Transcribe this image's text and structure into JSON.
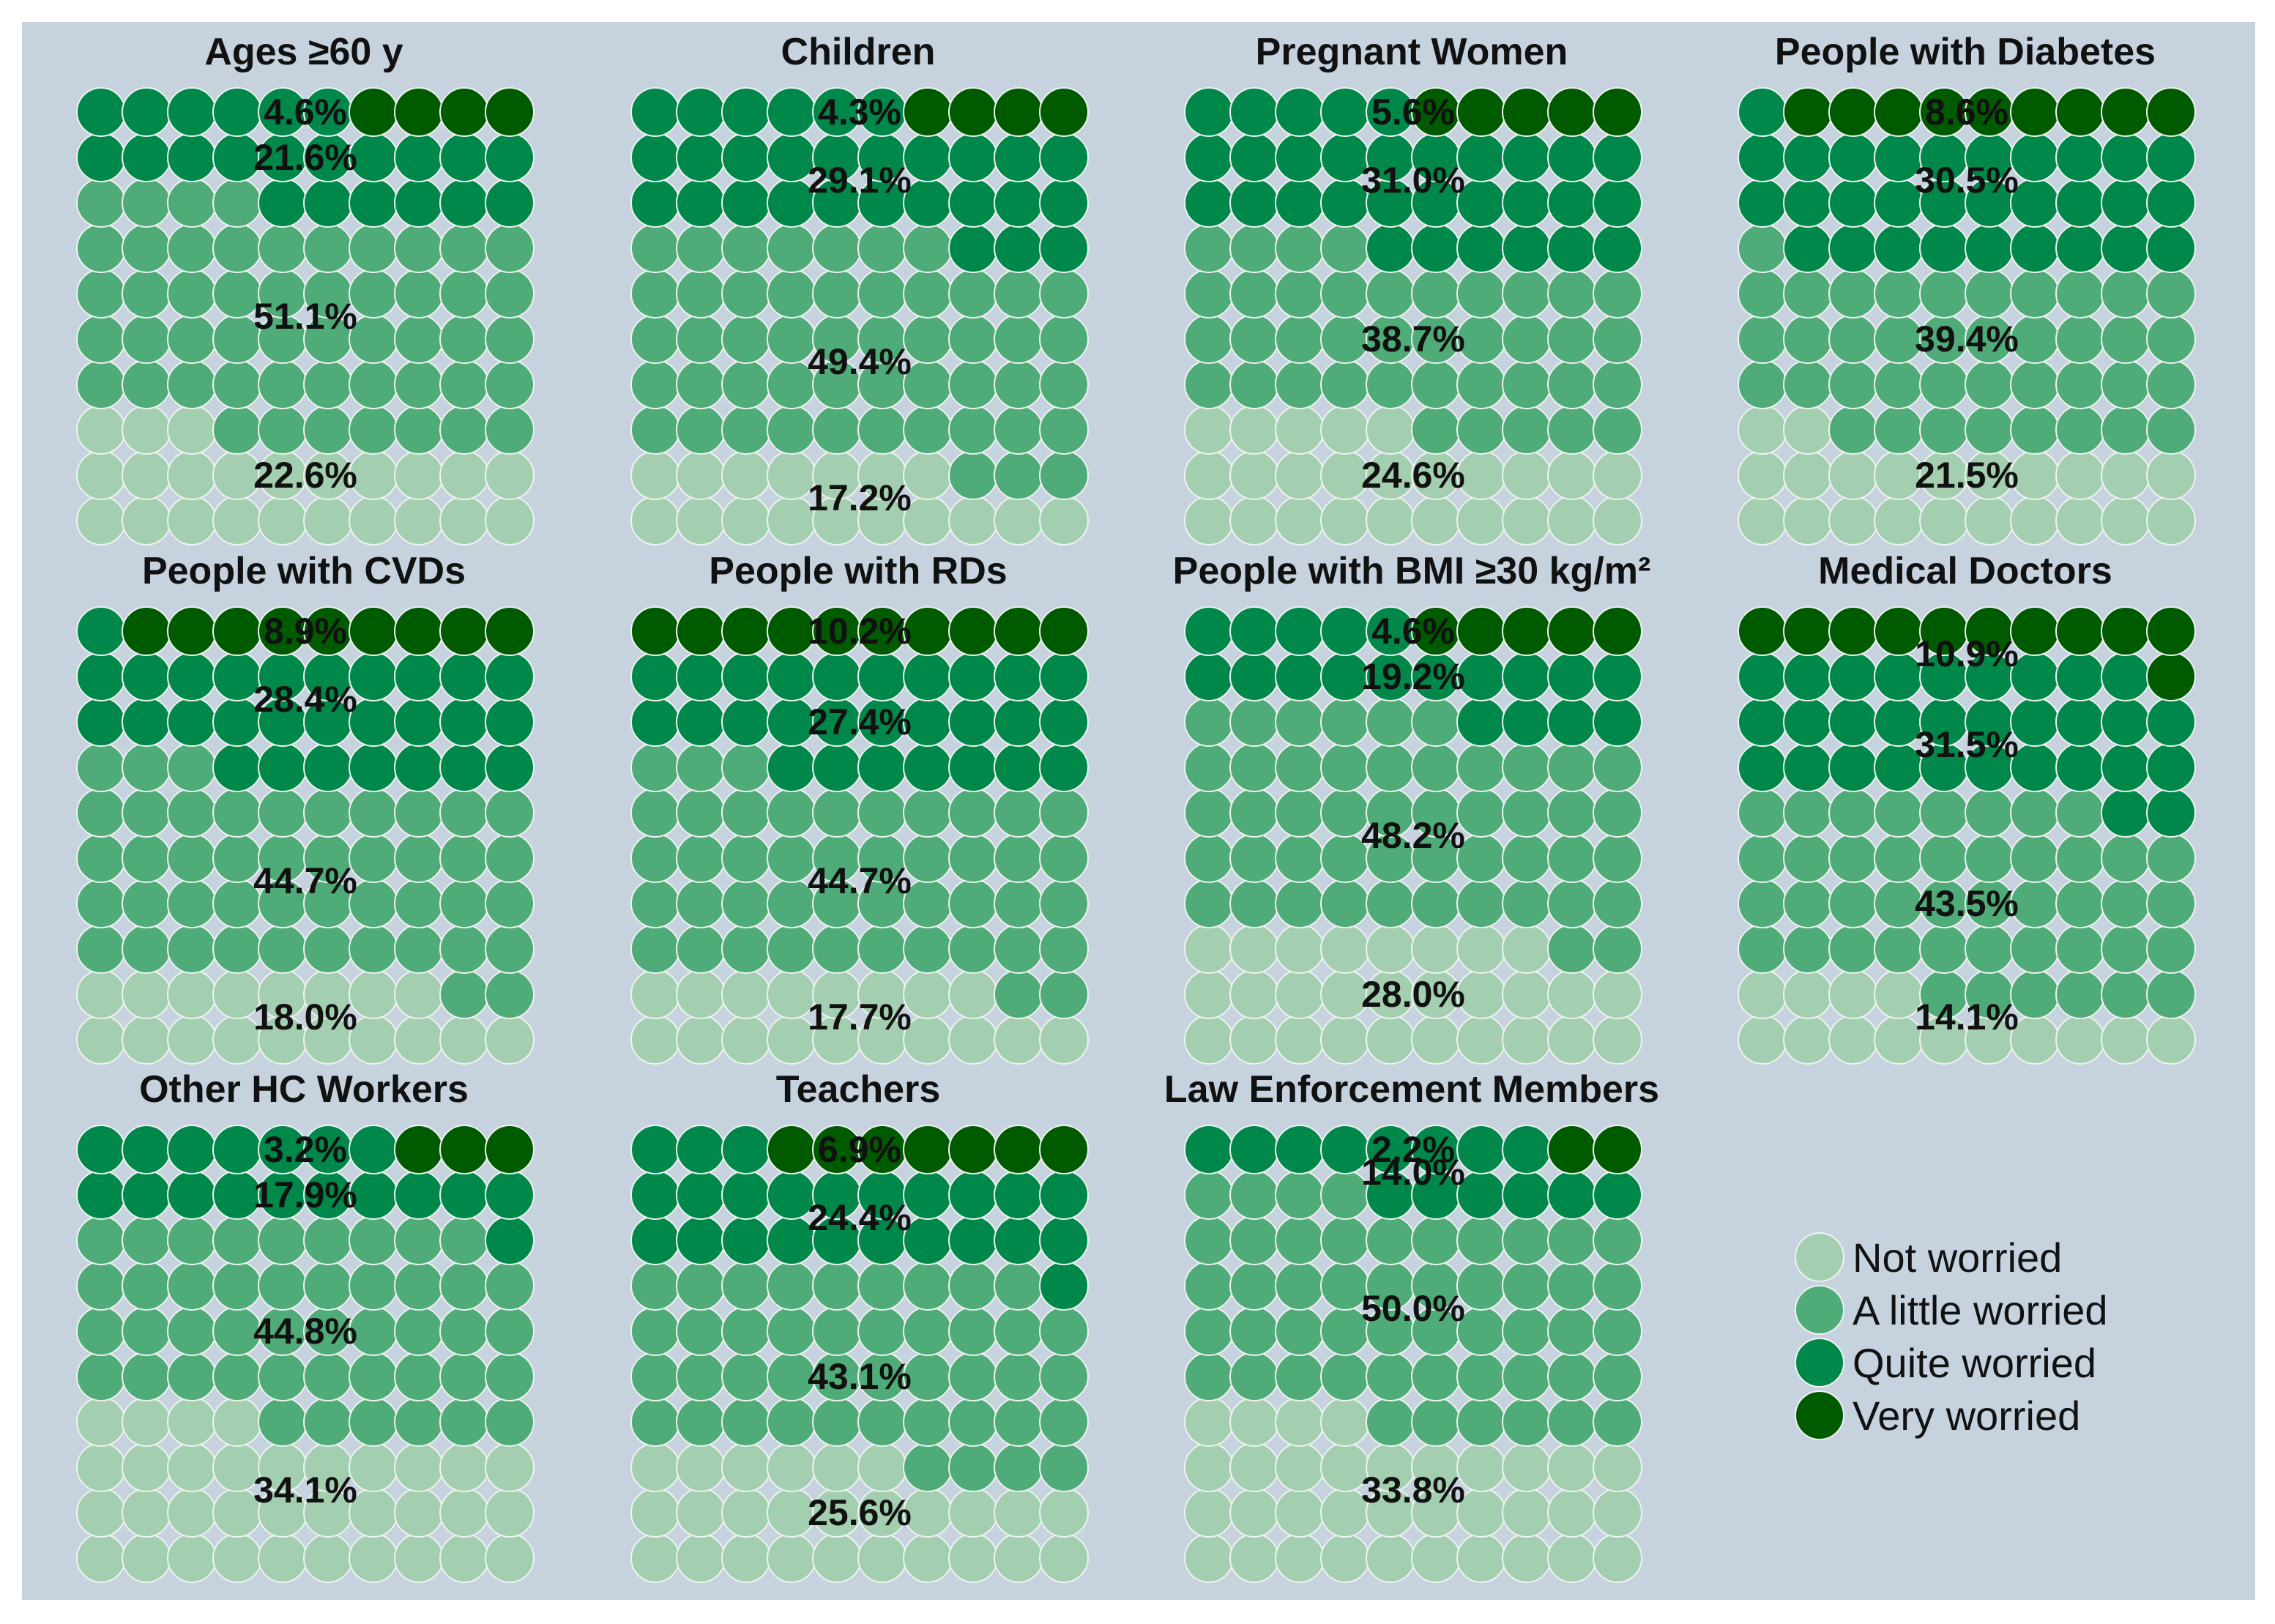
{
  "chart_data": {
    "type": "waffle",
    "grid": {
      "rows": 10,
      "cols": 10
    },
    "categories": [
      "Not worried",
      "A little worried",
      "Quite worried",
      "Very worried"
    ],
    "colors": {
      "background": "#c6d3df",
      "cell_stroke": "#eef3f0",
      "Not worried": "#a3cfb0",
      "A little worried": "#4fab78",
      "Quite worried": "#00884a",
      "Very worried": "#005a00"
    },
    "legend": {
      "position": "bottom-right",
      "items": [
        "Not worried",
        "A little worried",
        "Quite worried",
        "Very worried"
      ]
    },
    "panels": [
      {
        "title": "Ages ≥60 y",
        "values": {
          "Not worried": 22.6,
          "A little worried": 51.1,
          "Quite worried": 21.6,
          "Very worried": 4.6
        },
        "labels": {
          "Not worried": "22.6%",
          "A little worried": "51.1%",
          "Quite worried": "21.6%",
          "Very worried": "4.6%"
        }
      },
      {
        "title": "Children",
        "values": {
          "Not worried": 17.2,
          "A little worried": 49.4,
          "Quite worried": 29.1,
          "Very worried": 4.3
        },
        "labels": {
          "Not worried": "17.2%",
          "A little worried": "49.4%",
          "Quite worried": "29.1%",
          "Very worried": "4.3%"
        }
      },
      {
        "title": "Pregnant Women",
        "values": {
          "Not worried": 24.6,
          "A little worried": 38.7,
          "Quite worried": 31.0,
          "Very worried": 5.6
        },
        "labels": {
          "Not worried": "24.6%",
          "A little worried": "38.7%",
          "Quite worried": "31.0%",
          "Very worried": "5.6%"
        }
      },
      {
        "title": "People with Diabetes",
        "values": {
          "Not worried": 21.5,
          "A little worried": 39.4,
          "Quite worried": 30.5,
          "Very worried": 8.6
        },
        "labels": {
          "Not worried": "21.5%",
          "A little worried": "39.4%",
          "Quite worried": "30.5%",
          "Very worried": "8.6%"
        }
      },
      {
        "title": "People with CVDs",
        "values": {
          "Not worried": 18.0,
          "A little worried": 44.7,
          "Quite worried": 28.4,
          "Very worried": 8.9
        },
        "labels": {
          "Not worried": "18.0%",
          "A little worried": "44.7%",
          "Quite worried": "28.4%",
          "Very worried": "8.9%"
        }
      },
      {
        "title": "People with RDs",
        "values": {
          "Not worried": 17.7,
          "A little worried": 44.7,
          "Quite worried": 27.4,
          "Very worried": 10.2
        },
        "labels": {
          "Not worried": "17.7%",
          "A little worried": "44.7%",
          "Quite worried": "27.4%",
          "Very worried": "10.2%"
        }
      },
      {
        "title": "People with BMI ≥30 kg/m²",
        "values": {
          "Not worried": 28.0,
          "A little worried": 48.2,
          "Quite worried": 19.2,
          "Very worried": 4.6
        },
        "labels": {
          "Not worried": "28.0%",
          "A little worried": "48.2%",
          "Quite worried": "19.2%",
          "Very worried": "4.6%"
        }
      },
      {
        "title": "Medical Doctors",
        "values": {
          "Not worried": 14.1,
          "A little worried": 43.5,
          "Quite worried": 31.5,
          "Very worried": 10.9
        },
        "labels": {
          "Not worried": "14.1%",
          "A little worried": "43.5%",
          "Quite worried": "31.5%",
          "Very worried": "10.9%"
        }
      },
      {
        "title": "Other HC Workers",
        "values": {
          "Not worried": 34.1,
          "A little worried": 44.8,
          "Quite worried": 17.9,
          "Very worried": 3.2
        },
        "labels": {
          "Not worried": "34.1%",
          "A little worried": "44.8%",
          "Quite worried": "17.9%",
          "Very worried": "3.2%"
        }
      },
      {
        "title": "Teachers",
        "values": {
          "Not worried": 25.6,
          "A little worried": 43.1,
          "Quite worried": 24.4,
          "Very worried": 6.9
        },
        "labels": {
          "Not worried": "25.6%",
          "A little worried": "43.1%",
          "Quite worried": "24.4%",
          "Very worried": "6.9%"
        }
      },
      {
        "title": "Law Enforcement Members",
        "values": {
          "Not worried": 33.8,
          "A little worried": 50.0,
          "Quite worried": 14.0,
          "Very worried": 2.2
        },
        "labels": {
          "Not worried": "33.8%",
          "A little worried": "50.0%",
          "Quite worried": "14.0%",
          "Very worried": "2.2%"
        }
      }
    ]
  }
}
